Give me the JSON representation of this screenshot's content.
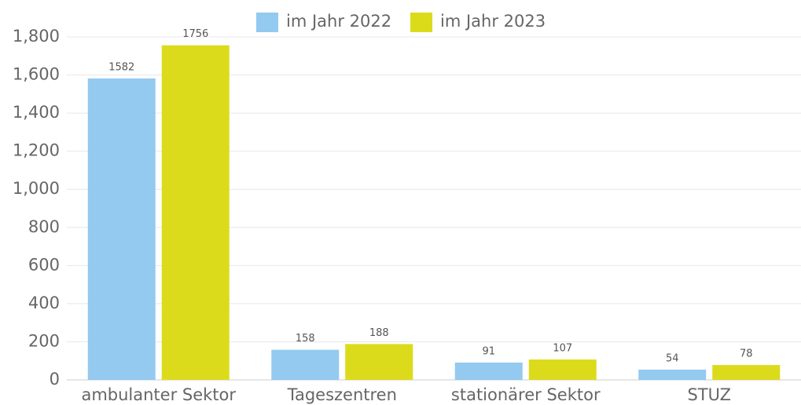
{
  "chart_data": {
    "type": "bar",
    "categories": [
      "ambulanter Sektor",
      "Tageszentren",
      "stationärer Sektor",
      "STUZ"
    ],
    "series": [
      {
        "name": "im Jahr 2022",
        "color": "#94c9f0",
        "values": [
          1582,
          158,
          91,
          54
        ]
      },
      {
        "name": "im Jahr 2023",
        "color": "#dbdb1c",
        "values": [
          1756,
          188,
          107,
          78
        ]
      }
    ],
    "ylim": [
      0,
      1800
    ],
    "yticks": [
      0,
      200,
      400,
      600,
      800,
      {
        "value": 1000,
        "label": "1,000"
      },
      {
        "value": 1200,
        "label": "1,200"
      },
      {
        "value": 1400,
        "label": "1,400"
      },
      {
        "value": 1600,
        "label": "1,600"
      },
      {
        "value": 1800,
        "label": "1,800"
      }
    ],
    "grid": true,
    "legend": "top"
  }
}
